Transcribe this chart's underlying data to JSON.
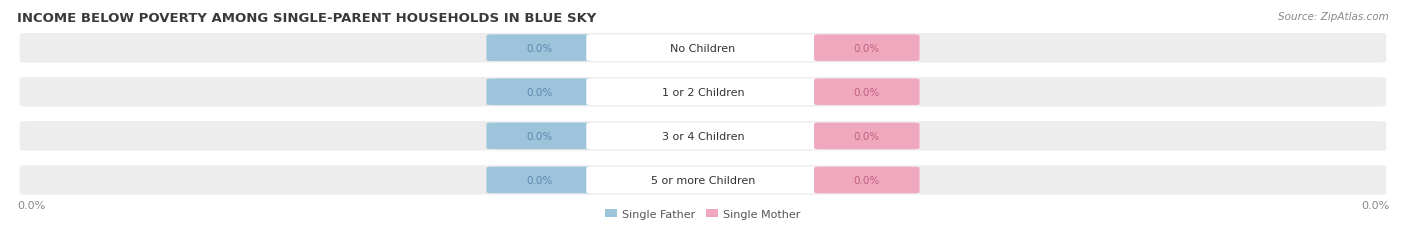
{
  "title": "INCOME BELOW POVERTY AMONG SINGLE-PARENT HOUSEHOLDS IN BLUE SKY",
  "source_text": "Source: ZipAtlas.com",
  "categories": [
    "No Children",
    "1 or 2 Children",
    "3 or 4 Children",
    "5 or more Children"
  ],
  "single_father_values": [
    "0.0%",
    "0.0%",
    "0.0%",
    "0.0%"
  ],
  "single_mother_values": [
    "0.0%",
    "0.0%",
    "0.0%",
    "0.0%"
  ],
  "father_color": "#9ec4db",
  "mother_color": "#f0a8be",
  "row_bg_color": "#ededee",
  "center_label_bg": "#ffffff",
  "title_fontsize": 9.5,
  "source_fontsize": 7.5,
  "bar_label_fontsize": 7.5,
  "cat_label_fontsize": 8,
  "tick_fontsize": 8,
  "left_axis_label": "0.0%",
  "right_axis_label": "0.0%",
  "figsize": [
    14.06,
    2.32
  ],
  "dpi": 100,
  "background_color": "#ffffff"
}
